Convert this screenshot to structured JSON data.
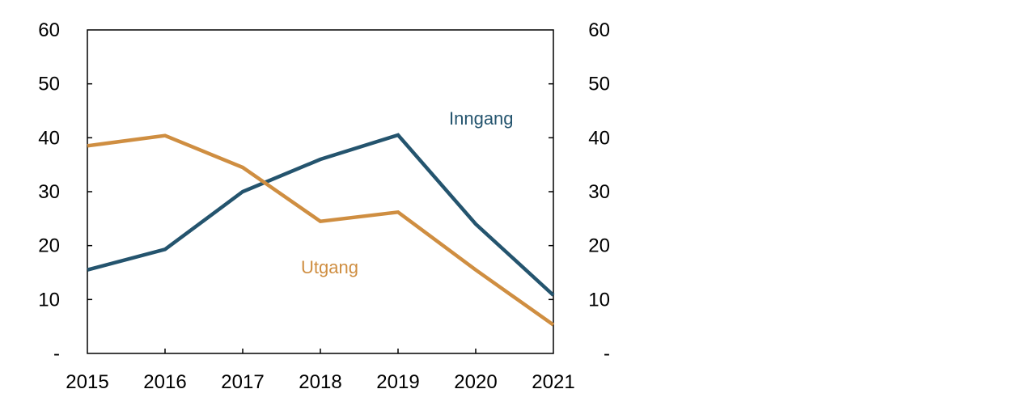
{
  "chart_data": {
    "type": "line",
    "x": [
      "2015",
      "2016",
      "2017",
      "2018",
      "2019",
      "2020",
      "2021"
    ],
    "ylim": [
      0,
      60
    ],
    "yticks": [
      {
        "value": 60,
        "label": "60"
      },
      {
        "value": 50,
        "label": "50"
      },
      {
        "value": 40,
        "label": "40"
      },
      {
        "value": 30,
        "label": "30"
      },
      {
        "value": 20,
        "label": "20"
      },
      {
        "value": 10,
        "label": "10"
      },
      {
        "value": 0,
        "label": "-"
      }
    ],
    "secondary_y_axis": true,
    "grid": false,
    "legend": "none (series labeled directly on plot)",
    "series": [
      {
        "name": "Inngang",
        "color": "#24546e",
        "values": [
          15.5,
          19.3,
          30.0,
          36.0,
          40.5,
          24.0,
          10.8
        ]
      },
      {
        "name": "Utgang",
        "color": "#cf8e41",
        "values": [
          38.5,
          40.4,
          34.5,
          24.5,
          26.2,
          15.5,
          5.3
        ]
      }
    ]
  }
}
